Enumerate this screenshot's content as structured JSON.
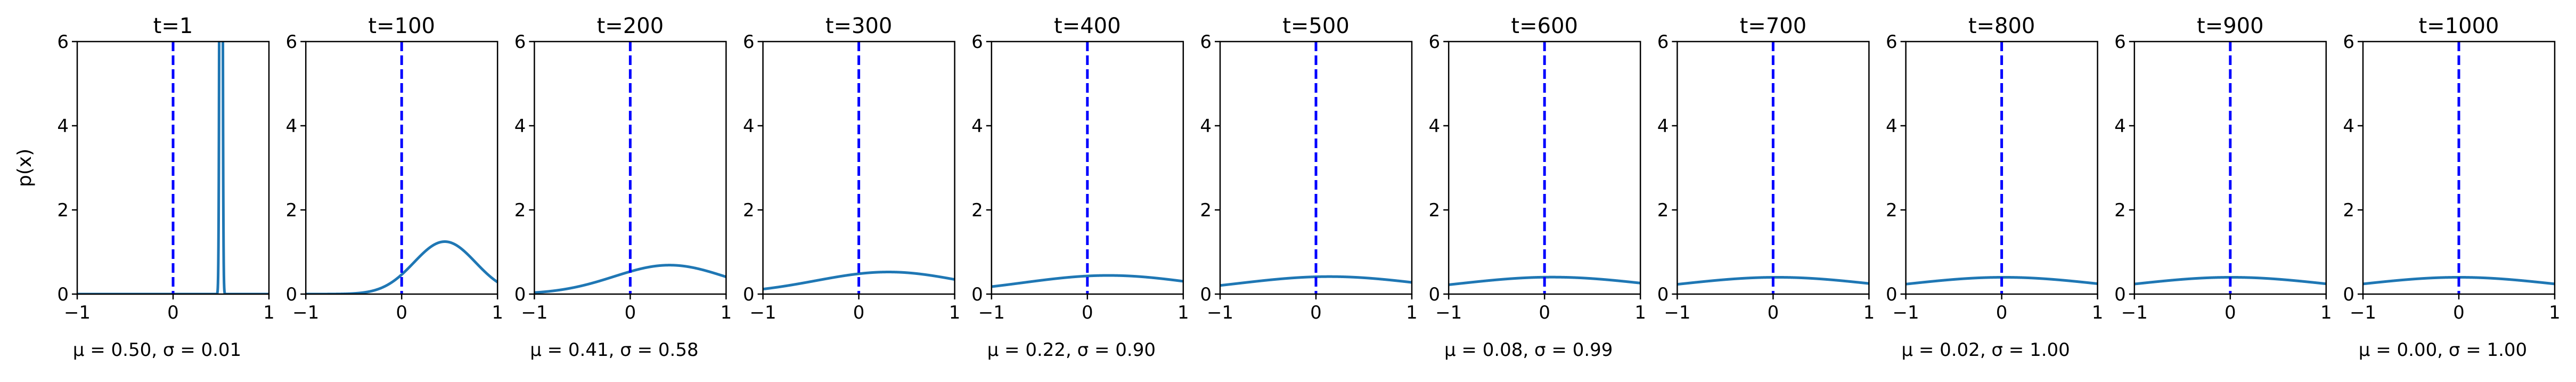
{
  "figure": {
    "ylabel": "p(x)",
    "colors": {
      "curve": "#1f77b4",
      "reference_line": "#0000ff",
      "axes": "#000000"
    }
  },
  "chart_data": [
    {
      "type": "line",
      "title": "t=1",
      "mu": 0.5,
      "sigma": 0.01,
      "footer": "μ = 0.50, σ = 0.01",
      "xlim": [
        -1,
        1
      ],
      "ylim": [
        0,
        6
      ],
      "xticks": [
        "−1",
        "0",
        "1"
      ],
      "yticks": [
        "0",
        "2",
        "4",
        "6"
      ],
      "reference_x": 0
    },
    {
      "type": "line",
      "title": "t=100",
      "mu": 0.45,
      "sigma": 0.32,
      "footer": "",
      "xlim": [
        -1,
        1
      ],
      "ylim": [
        0,
        6
      ],
      "xticks": [
        "−1",
        "0",
        "1"
      ],
      "yticks": [
        "0",
        "2",
        "4",
        "6"
      ],
      "reference_x": 0
    },
    {
      "type": "line",
      "title": "t=200",
      "mu": 0.41,
      "sigma": 0.58,
      "footer": "μ = 0.41, σ = 0.58",
      "xlim": [
        -1,
        1
      ],
      "ylim": [
        0,
        6
      ],
      "xticks": [
        "−1",
        "0",
        "1"
      ],
      "yticks": [
        "0",
        "2",
        "4",
        "6"
      ],
      "reference_x": 0
    },
    {
      "type": "line",
      "title": "t=300",
      "mu": 0.31,
      "sigma": 0.76,
      "footer": "",
      "xlim": [
        -1,
        1
      ],
      "ylim": [
        0,
        6
      ],
      "xticks": [
        "−1",
        "0",
        "1"
      ],
      "yticks": [
        "0",
        "2",
        "4",
        "6"
      ],
      "reference_x": 0
    },
    {
      "type": "line",
      "title": "t=400",
      "mu": 0.22,
      "sigma": 0.9,
      "footer": "μ = 0.22, σ = 0.90",
      "xlim": [
        -1,
        1
      ],
      "ylim": [
        0,
        6
      ],
      "xticks": [
        "−1",
        "0",
        "1"
      ],
      "yticks": [
        "0",
        "2",
        "4",
        "6"
      ],
      "reference_x": 0
    },
    {
      "type": "line",
      "title": "t=500",
      "mu": 0.14,
      "sigma": 0.96,
      "footer": "",
      "xlim": [
        -1,
        1
      ],
      "ylim": [
        0,
        6
      ],
      "xticks": [
        "−1",
        "0",
        "1"
      ],
      "yticks": [
        "0",
        "2",
        "4",
        "6"
      ],
      "reference_x": 0
    },
    {
      "type": "line",
      "title": "t=600",
      "mu": 0.08,
      "sigma": 0.99,
      "footer": "μ = 0.08, σ = 0.99",
      "xlim": [
        -1,
        1
      ],
      "ylim": [
        0,
        6
      ],
      "xticks": [
        "−1",
        "0",
        "1"
      ],
      "yticks": [
        "0",
        "2",
        "4",
        "6"
      ],
      "reference_x": 0
    },
    {
      "type": "line",
      "title": "t=700",
      "mu": 0.04,
      "sigma": 1.0,
      "footer": "",
      "xlim": [
        -1,
        1
      ],
      "ylim": [
        0,
        6
      ],
      "xticks": [
        "−1",
        "0",
        "1"
      ],
      "yticks": [
        "0",
        "2",
        "4",
        "6"
      ],
      "reference_x": 0
    },
    {
      "type": "line",
      "title": "t=800",
      "mu": 0.02,
      "sigma": 1.0,
      "footer": "μ = 0.02, σ = 1.00",
      "xlim": [
        -1,
        1
      ],
      "ylim": [
        0,
        6
      ],
      "xticks": [
        "−1",
        "0",
        "1"
      ],
      "yticks": [
        "0",
        "2",
        "4",
        "6"
      ],
      "reference_x": 0
    },
    {
      "type": "line",
      "title": "t=900",
      "mu": 0.01,
      "sigma": 1.0,
      "footer": "",
      "xlim": [
        -1,
        1
      ],
      "ylim": [
        0,
        6
      ],
      "xticks": [
        "−1",
        "0",
        "1"
      ],
      "yticks": [
        "0",
        "2",
        "4",
        "6"
      ],
      "reference_x": 0
    },
    {
      "type": "line",
      "title": "t=1000",
      "mu": 0.0,
      "sigma": 1.0,
      "footer": "μ = 0.00, σ = 1.00",
      "xlim": [
        -1,
        1
      ],
      "ylim": [
        0,
        6
      ],
      "xticks": [
        "−1",
        "0",
        "1"
      ],
      "yticks": [
        "0",
        "2",
        "4",
        "6"
      ],
      "reference_x": 0
    }
  ]
}
